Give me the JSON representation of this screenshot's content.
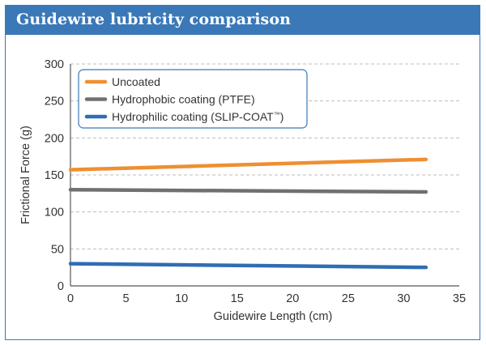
{
  "header": {
    "title": "Guidewire lubricity comparison"
  },
  "colors": {
    "banner": "#3a78b8",
    "frame": "#3a78b8",
    "grid": "#bdbdbd"
  },
  "chart_data": {
    "type": "line",
    "title": "",
    "xlabel": "Guidewire Length (cm)",
    "ylabel": "Frictional Force (g)",
    "xlim": [
      0,
      35
    ],
    "ylim": [
      0,
      300
    ],
    "xticks": [
      0,
      5,
      10,
      15,
      20,
      25,
      30,
      35
    ],
    "yticks": [
      0,
      50,
      100,
      150,
      200,
      250,
      300
    ],
    "grid": "horizontal dashed",
    "legend_position": "top-left",
    "series": [
      {
        "name": "Uncoated",
        "color": "#ee8f32",
        "x": [
          0,
          32
        ],
        "y": [
          157,
          171
        ]
      },
      {
        "name": "Hydrophobic coating (PTFE)",
        "color": "#707070",
        "x": [
          0,
          32
        ],
        "y": [
          130,
          127
        ]
      },
      {
        "name": "Hydrophilic coating (SLIP-COAT",
        "name_suffix": "™",
        "name_close": ")",
        "color": "#2f6db5",
        "x": [
          0,
          32
        ],
        "y": [
          30,
          25
        ]
      }
    ]
  }
}
